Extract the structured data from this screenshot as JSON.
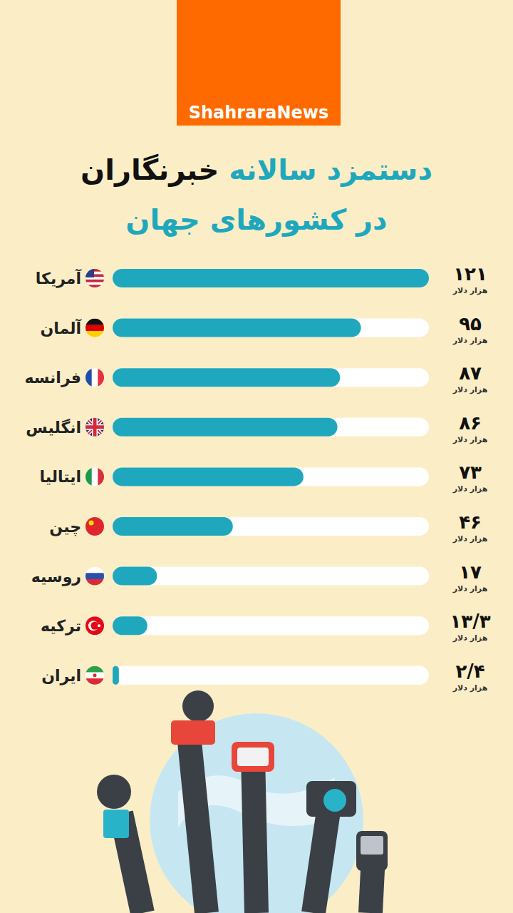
{
  "chart_data": {
    "type": "bar",
    "orientation": "horizontal",
    "brand": "ShahraraNews",
    "title": "دستمزد سالانه خبرنگاران در کشورهای جهان",
    "categories": [
      "آمریکا",
      "آلمان",
      "فرانسه",
      "انگلیس",
      "ایتالیا",
      "چین",
      "روسیه",
      "ترکیه",
      "ایران"
    ],
    "values": [
      121,
      95,
      87,
      86,
      73,
      46,
      17,
      13.3,
      2.4
    ],
    "value_labels": [
      "۱۲۱",
      "۹۵",
      "۸۷",
      "۸۶",
      "۷۳",
      "۴۶",
      "۱۷",
      "۱۳/۳",
      "۲/۴"
    ],
    "value_unit": "هزار دلار",
    "color": "#1fa8bd",
    "xlim": [
      0,
      121
    ],
    "data_labels": true,
    "tick_labels": false,
    "grid": false
  }
}
